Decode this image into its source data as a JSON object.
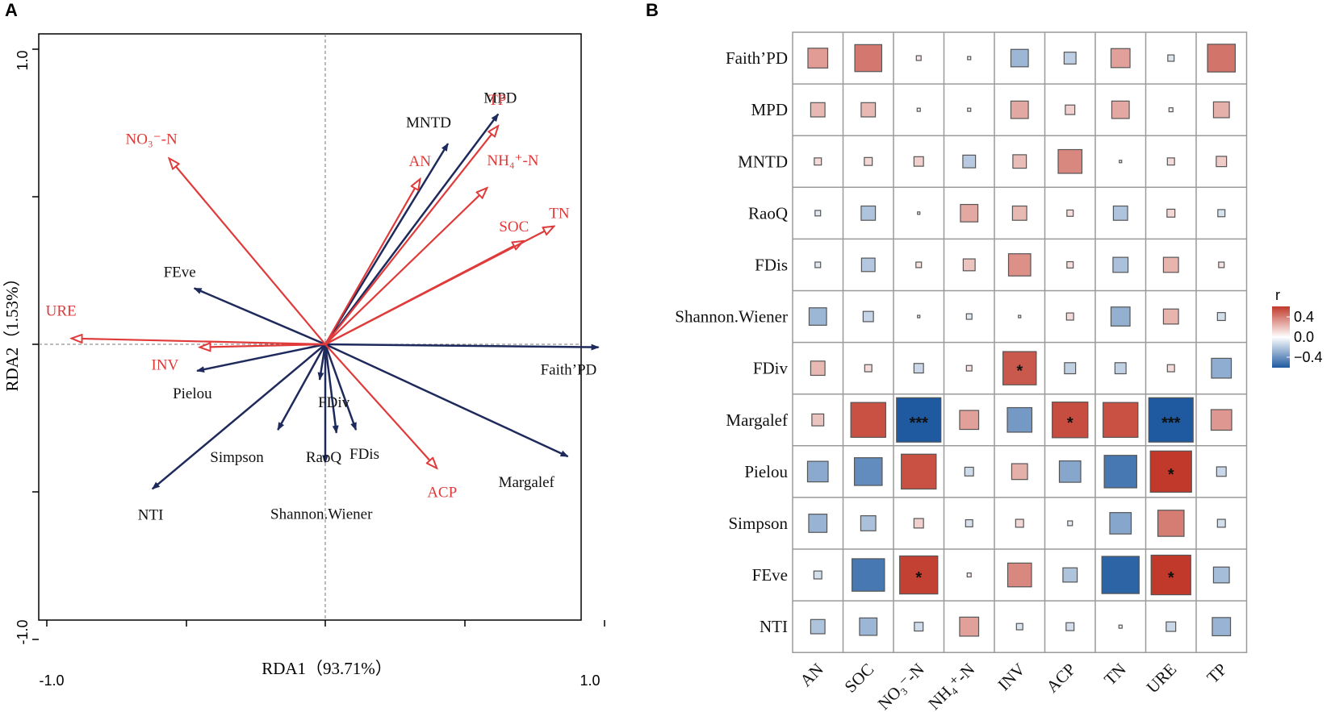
{
  "chart_data": [
    {
      "panel": "A",
      "type": "scatter",
      "subtype": "rda-biplot",
      "xlabel": "RDA1（93.71%）",
      "ylabel": "RDA2（1.53%）",
      "xlim": [
        -1.0,
        1.0
      ],
      "ylim": [
        -1.05,
        1.05
      ],
      "x_tick_labels": [
        "-1.0",
        "1.0"
      ],
      "y_tick_labels": [
        "1.0",
        "-1.0"
      ],
      "diversity_vectors": [
        {
          "name": "MPD",
          "x": 0.62,
          "y": 0.78
        },
        {
          "name": "MNTD",
          "x": 0.44,
          "y": 0.68
        },
        {
          "name": "FEve",
          "x": -0.47,
          "y": 0.19
        },
        {
          "name": "Pielou",
          "x": -0.46,
          "y": -0.09
        },
        {
          "name": "Faith’PD",
          "x": 0.98,
          "y": -0.01
        },
        {
          "name": "Margalef",
          "x": 0.87,
          "y": -0.38
        },
        {
          "name": "NTI",
          "x": -0.62,
          "y": -0.49
        },
        {
          "name": "Simpson",
          "x": -0.17,
          "y": -0.29
        },
        {
          "name": "FDiv",
          "x": -0.02,
          "y": -0.12
        },
        {
          "name": "RaoQ",
          "x": 0.04,
          "y": -0.3
        },
        {
          "name": "Shannon.Wiener",
          "x": 0.0,
          "y": -0.4
        },
        {
          "name": "FDis",
          "x": 0.11,
          "y": -0.29
        }
      ],
      "environment_vectors": [
        {
          "name": "NO₃⁻-N",
          "x": -0.56,
          "y": 0.63
        },
        {
          "name": "URE",
          "x": -0.91,
          "y": 0.02
        },
        {
          "name": "INV",
          "x": -0.45,
          "y": -0.01
        },
        {
          "name": "TP",
          "x": 0.62,
          "y": 0.74
        },
        {
          "name": "AN",
          "x": 0.34,
          "y": 0.56
        },
        {
          "name": "NH₄⁺-N",
          "x": 0.58,
          "y": 0.53
        },
        {
          "name": "SOC",
          "x": 0.71,
          "y": 0.35
        },
        {
          "name": "TN",
          "x": 0.82,
          "y": 0.4
        },
        {
          "name": "ACP",
          "x": 0.4,
          "y": -0.42
        }
      ]
    },
    {
      "panel": "B",
      "type": "heatmap",
      "legend_title": "r",
      "legend_ticks": [
        "0.4",
        "0.0",
        "−0.4"
      ],
      "color_range": [
        -0.5,
        0.5
      ],
      "rows": [
        "Faith’PD",
        "MPD",
        "MNTD",
        "RaoQ",
        "FDis",
        "Shannon.Wiener",
        "FDiv",
        "Margalef",
        "Pielou",
        "Simpson",
        "FEve",
        "NTI"
      ],
      "columns": [
        "AN",
        "SOC",
        "NO₃⁻-N",
        "NH₄⁺-N",
        "INV",
        "ACP",
        "TN",
        "URE",
        "TP"
      ],
      "values": [
        [
          0.25,
          0.34,
          0.06,
          0.04,
          -0.22,
          -0.15,
          0.24,
          -0.08,
          0.35
        ],
        [
          0.18,
          0.18,
          0.04,
          0.04,
          0.22,
          0.12,
          0.22,
          0.05,
          0.2
        ],
        [
          0.09,
          0.1,
          0.12,
          -0.16,
          0.17,
          0.3,
          0.03,
          0.09,
          0.13
        ],
        [
          -0.07,
          -0.18,
          0.03,
          0.22,
          0.18,
          0.08,
          -0.18,
          0.1,
          -0.09
        ],
        [
          -0.07,
          -0.17,
          0.07,
          0.15,
          0.28,
          0.08,
          -0.19,
          0.19,
          0.07
        ],
        [
          -0.22,
          -0.13,
          0.03,
          -0.07,
          0.01,
          0.09,
          -0.24,
          0.19,
          -0.1
        ],
        [
          0.18,
          0.09,
          -0.12,
          0.07,
          0.42,
          -0.14,
          -0.14,
          0.09,
          -0.25
        ],
        [
          0.15,
          0.44,
          -0.56,
          0.24,
          -0.31,
          0.45,
          0.44,
          -0.56,
          0.26
        ],
        [
          -0.26,
          -0.35,
          0.44,
          -0.11,
          0.2,
          -0.27,
          -0.41,
          0.52,
          -0.12
        ],
        [
          -0.23,
          -0.19,
          0.12,
          -0.09,
          0.1,
          -0.06,
          -0.27,
          0.33,
          -0.1
        ],
        [
          -0.1,
          -0.41,
          0.48,
          0.05,
          0.3,
          -0.18,
          -0.47,
          0.5,
          -0.2
        ],
        [
          -0.18,
          -0.22,
          -0.11,
          0.24,
          -0.08,
          -0.1,
          0.04,
          -0.12,
          -0.23
        ]
      ],
      "significance": [
        [
          "",
          "",
          "",
          "",
          "",
          "",
          "",
          "",
          ""
        ],
        [
          "",
          "",
          "",
          "",
          "",
          "",
          "",
          "",
          ""
        ],
        [
          "",
          "",
          "",
          "",
          "",
          "",
          "",
          "",
          ""
        ],
        [
          "",
          "",
          "",
          "",
          "",
          "",
          "",
          "",
          ""
        ],
        [
          "",
          "",
          "",
          "",
          "",
          "",
          "",
          "",
          ""
        ],
        [
          "",
          "",
          "",
          "",
          "",
          "",
          "",
          "",
          ""
        ],
        [
          "",
          "",
          "",
          "",
          "*",
          "",
          "",
          "",
          ""
        ],
        [
          "",
          "",
          "***",
          "",
          "",
          "*",
          "",
          "***",
          ""
        ],
        [
          "",
          "",
          "",
          "",
          "",
          "",
          "",
          "*",
          ""
        ],
        [
          "",
          "",
          "",
          "",
          "",
          "",
          "",
          "",
          ""
        ],
        [
          "",
          "",
          "*",
          "",
          "",
          "",
          "",
          "*",
          ""
        ],
        [
          "",
          "",
          "",
          "",
          "",
          "",
          "",
          "",
          ""
        ]
      ]
    }
  ],
  "colors": {
    "diversity_arrow": "#1f2a5c",
    "environment_arrow": "#e03a3a",
    "positive": "#c0392b",
    "neutral": "#ffffff",
    "negative": "#1f5aa0",
    "grid": "#9a9a9a"
  }
}
